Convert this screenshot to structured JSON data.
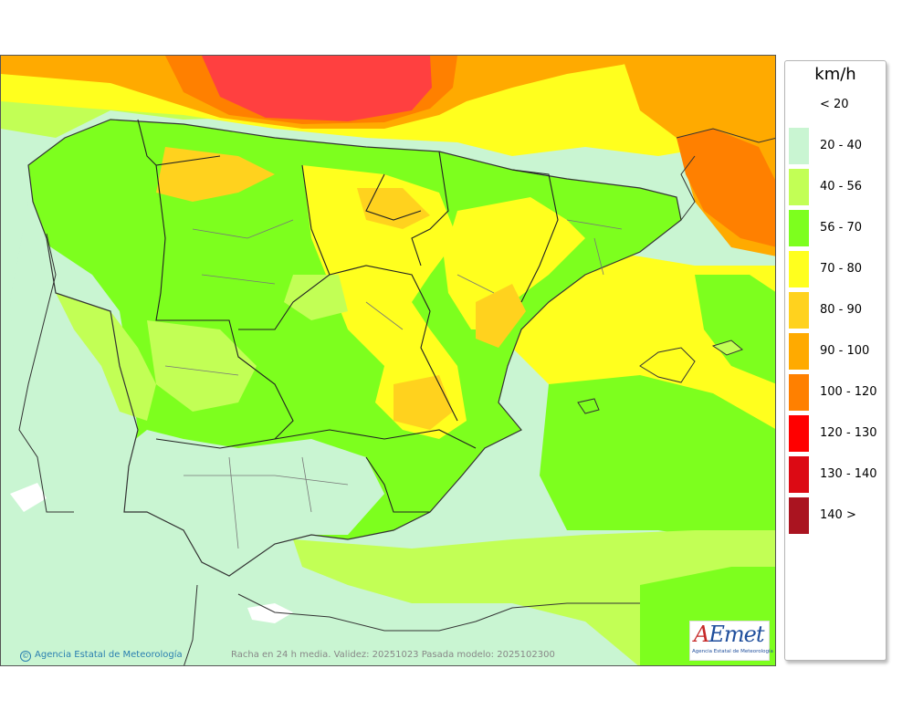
{
  "legend": {
    "title": "km/h",
    "items": [
      {
        "label": "< 20",
        "color": "#ffffff"
      },
      {
        "label": "20 - 40",
        "color": "#c9f5d2"
      },
      {
        "label": "40 - 56",
        "color": "#c2ff55"
      },
      {
        "label": "56 - 70",
        "color": "#7dff1e"
      },
      {
        "label": "70 - 80",
        "color": "#ffff1e"
      },
      {
        "label": "80 - 90",
        "color": "#ffd21e"
      },
      {
        "label": "90 - 100",
        "color": "#ffaa00"
      },
      {
        "label": "100 - 120",
        "color": "#ff8000"
      },
      {
        "label": "120 - 130",
        "color": "#ff0000"
      },
      {
        "label": "130 - 140",
        "color": "#dc0a14"
      },
      {
        "label": "140 >",
        "color": "#aa1420"
      }
    ]
  },
  "footer": {
    "credit": "Agencia Estatal de Meteorología",
    "caption": "Racha en 24 h media. Validez: 20251023 Pasada modelo: 2025102300"
  },
  "logo": {
    "text": "AEmet",
    "subtitle": "Agencia Estatal de Meteorología"
  }
}
